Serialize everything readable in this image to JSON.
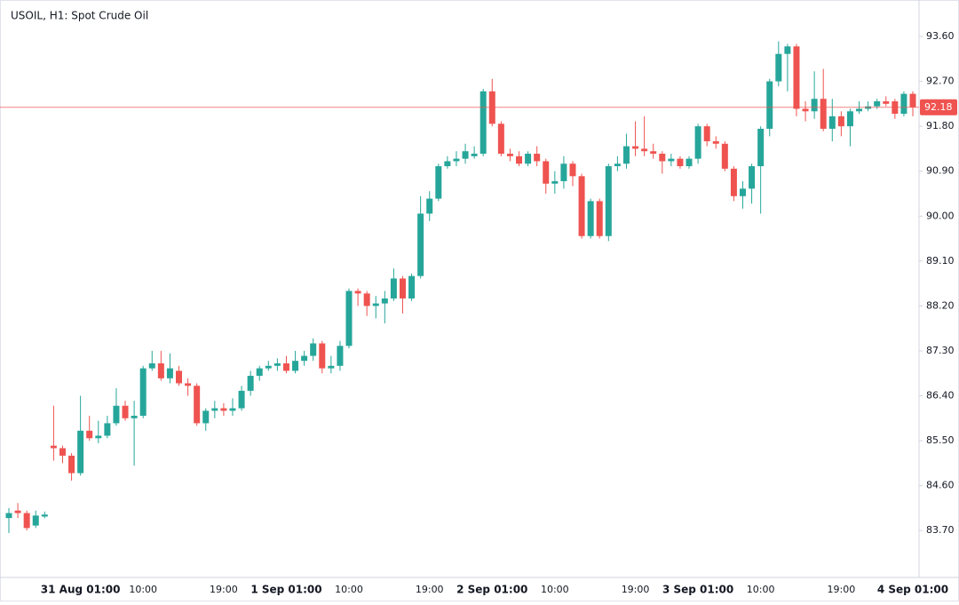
{
  "chart_data": {
    "type": "candlestick",
    "title": "USOIL, H1: Spot Crude Oil",
    "categories": [
      null,
      null,
      null,
      null,
      null,
      null,
      null,
      null,
      "31 Aug 01:00",
      null,
      null,
      null,
      null,
      null,
      null,
      "10:00",
      null,
      null,
      null,
      null,
      null,
      null,
      null,
      null,
      "19:00",
      null,
      null,
      null,
      null,
      null,
      null,
      "1 Sep 01:00",
      null,
      null,
      null,
      null,
      null,
      null,
      "10:00",
      null,
      null,
      null,
      null,
      null,
      null,
      null,
      null,
      "19:00",
      null,
      null,
      null,
      null,
      null,
      null,
      "2 Sep 01:00",
      null,
      null,
      null,
      null,
      null,
      null,
      "10:00",
      null,
      null,
      null,
      null,
      null,
      null,
      null,
      null,
      "19:00",
      null,
      null,
      null,
      null,
      null,
      null,
      "3 Sep 01:00",
      null,
      null,
      null,
      null,
      null,
      null,
      "10:00",
      null,
      null,
      null,
      null,
      null,
      null,
      null,
      null,
      "19:00",
      null,
      null,
      null,
      null,
      null,
      null,
      null,
      "4 Sep 01:00"
    ],
    "open": [
      83.95,
      84.1,
      84.05,
      83.8,
      83.98,
      85.4,
      85.35,
      85.2,
      84.85,
      85.7,
      85.55,
      85.6,
      85.85,
      86.2,
      85.95,
      86.0,
      86.95,
      87.05,
      86.75,
      86.9,
      86.65,
      86.6,
      85.85,
      86.1,
      86.15,
      86.1,
      86.15,
      86.5,
      86.8,
      86.95,
      87.0,
      87.05,
      86.9,
      87.1,
      87.2,
      87.45,
      86.95,
      87.0,
      87.4,
      88.5,
      88.45,
      88.2,
      88.25,
      88.35,
      88.75,
      88.35,
      88.8,
      90.05,
      90.35,
      91.0,
      91.1,
      91.15,
      91.2,
      91.25,
      92.5,
      91.85,
      91.25,
      91.2,
      91.05,
      91.25,
      91.1,
      90.65,
      90.7,
      91.05,
      90.8,
      89.6,
      90.3,
      89.6,
      91.0,
      91.05,
      91.4,
      91.35,
      91.3,
      91.25,
      91.1,
      91.15,
      91.0,
      91.15,
      91.8,
      91.5,
      91.45,
      90.95,
      90.4,
      90.55,
      91.0,
      91.75,
      92.7,
      93.25,
      93.4,
      92.15,
      92.1,
      92.35,
      91.75,
      92.0,
      91.8,
      92.1,
      92.15,
      92.2,
      92.3,
      92.3,
      92.05,
      92.45
    ],
    "high": [
      84.15,
      84.25,
      84.1,
      84.1,
      84.08,
      86.2,
      85.4,
      85.25,
      86.4,
      86.0,
      85.9,
      86.0,
      86.55,
      86.3,
      86.3,
      87.0,
      87.3,
      87.3,
      87.25,
      87.0,
      86.75,
      86.65,
      86.15,
      86.3,
      86.25,
      86.35,
      86.6,
      86.9,
      87.0,
      87.1,
      87.15,
      87.2,
      87.3,
      87.3,
      87.55,
      87.5,
      87.2,
      87.5,
      88.55,
      88.55,
      88.5,
      88.4,
      88.5,
      88.95,
      88.8,
      88.85,
      90.4,
      90.5,
      91.05,
      91.2,
      91.3,
      91.45,
      91.4,
      92.55,
      92.75,
      91.9,
      91.35,
      91.3,
      91.3,
      91.4,
      91.15,
      90.9,
      91.2,
      91.1,
      90.85,
      90.35,
      90.35,
      91.05,
      91.2,
      91.65,
      91.9,
      92.0,
      91.45,
      91.3,
      91.25,
      91.2,
      91.2,
      91.85,
      91.85,
      91.6,
      91.5,
      91.0,
      90.7,
      91.05,
      91.8,
      92.75,
      93.5,
      93.45,
      93.45,
      92.3,
      92.9,
      92.95,
      92.35,
      92.1,
      92.15,
      92.3,
      92.3,
      92.35,
      92.4,
      92.35,
      92.5,
      92.5
    ],
    "low": [
      83.65,
      83.95,
      83.7,
      83.75,
      83.95,
      85.1,
      85.05,
      84.7,
      84.8,
      85.5,
      85.45,
      85.55,
      85.8,
      85.9,
      85.0,
      85.95,
      86.9,
      86.7,
      86.65,
      86.6,
      86.4,
      85.8,
      85.7,
      85.95,
      86.0,
      86.0,
      86.1,
      86.4,
      86.7,
      86.9,
      86.9,
      86.85,
      86.85,
      87.0,
      87.1,
      86.85,
      86.85,
      86.9,
      87.35,
      88.2,
      88.0,
      87.95,
      87.85,
      88.3,
      88.05,
      88.3,
      88.75,
      89.9,
      90.3,
      90.95,
      91.0,
      91.05,
      91.15,
      91.2,
      91.8,
      91.2,
      91.1,
      91.0,
      91.0,
      91.0,
      90.45,
      90.45,
      90.55,
      90.6,
      89.55,
      89.55,
      89.55,
      89.5,
      90.9,
      90.95,
      91.2,
      91.2,
      91.15,
      90.85,
      91.0,
      90.95,
      90.95,
      91.05,
      91.4,
      91.35,
      90.9,
      90.3,
      90.15,
      90.25,
      90.05,
      91.6,
      92.6,
      92.5,
      92.0,
      91.9,
      91.95,
      91.7,
      91.5,
      91.6,
      91.4,
      92.05,
      92.1,
      92.15,
      92.2,
      91.95,
      92.0,
      92.0
    ],
    "close": [
      84.05,
      84.05,
      83.75,
      84.0,
      84.02,
      85.35,
      85.2,
      84.85,
      85.7,
      85.55,
      85.6,
      85.85,
      86.2,
      85.95,
      86.0,
      86.95,
      87.05,
      86.75,
      86.95,
      86.65,
      86.6,
      85.85,
      86.1,
      86.15,
      86.1,
      86.15,
      86.5,
      86.8,
      86.95,
      87.0,
      87.05,
      86.9,
      87.1,
      87.2,
      87.45,
      86.95,
      87.0,
      87.4,
      88.5,
      88.45,
      88.2,
      88.25,
      88.35,
      88.75,
      88.35,
      88.8,
      90.05,
      90.35,
      91.0,
      91.1,
      91.15,
      91.3,
      91.25,
      92.5,
      91.85,
      91.25,
      91.2,
      91.05,
      91.25,
      91.1,
      90.65,
      90.7,
      91.05,
      90.8,
      89.6,
      90.3,
      89.6,
      91.0,
      91.05,
      91.4,
      91.35,
      91.3,
      91.25,
      91.1,
      91.15,
      91.0,
      91.15,
      91.8,
      91.5,
      91.45,
      90.95,
      90.4,
      90.55,
      91.0,
      91.75,
      92.7,
      93.25,
      93.4,
      92.15,
      92.1,
      92.35,
      91.75,
      92.0,
      91.8,
      92.1,
      92.15,
      92.2,
      92.3,
      92.25,
      92.05,
      92.45,
      92.18
    ],
    "up_color": "#26a69a",
    "down_color": "#ef5350",
    "current_price": 92.18,
    "ylim": [
      82.76,
      94.33
    ],
    "yticks": [
      {
        "value": 83.7,
        "label": "83.70"
      },
      {
        "value": 84.6,
        "label": "84.60"
      },
      {
        "value": 85.5,
        "label": "85.50"
      },
      {
        "value": 86.4,
        "label": "86.40"
      },
      {
        "value": 87.3,
        "label": "87.30"
      },
      {
        "value": 88.2,
        "label": "88.20"
      },
      {
        "value": 89.1,
        "label": "89.10"
      },
      {
        "value": 90.0,
        "label": "90.00"
      },
      {
        "value": 90.9,
        "label": "90.90"
      },
      {
        "value": 91.8,
        "label": "91.80"
      },
      {
        "value": 92.7,
        "label": "92.70"
      },
      {
        "value": 93.6,
        "label": "93.60"
      }
    ],
    "grid": false
  }
}
